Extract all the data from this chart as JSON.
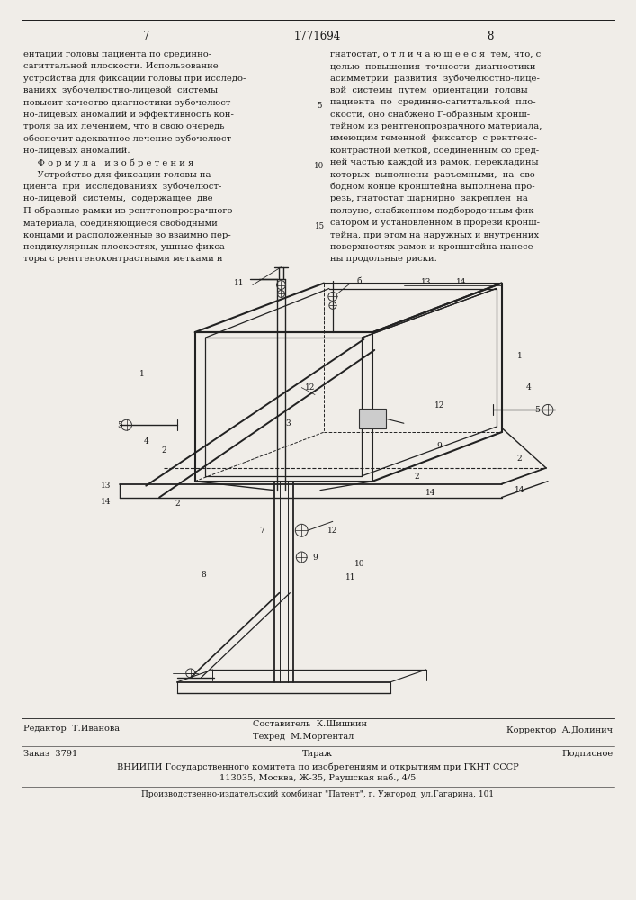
{
  "page_number_left": "7",
  "page_number_center": "1771694",
  "page_number_right": "8",
  "bg_color": "#f0ede8",
  "text_color": "#1a1a1a",
  "left_column_lines": [
    "ентации головы пациента по срединно-",
    "сагиттальной плоскости. Использование",
    "устройства для фиксации головы при исследо-",
    "ваниях  зубочелюстно-лицевой  системы",
    "повысит качество диагностики зубочелюст-",
    "но-лицевых аномалий и эффективность кон-",
    "троля за их лечением, что в свою очередь",
    "обеспечит адекватное лечение зубочелюст-",
    "но-лицевых аномалий.",
    "     Ф о р м у л а   и з о б р е т е н и я",
    "     Устройство для фиксации головы па-",
    "циента  при  исследованиях  зубочелюст-",
    "но-лицевой  системы,  содержащее  две",
    "П-образные рамки из рентгенопрозрачного",
    "материала, соединяющиеся свободными",
    "концами и расположенные во взаимно пер-",
    "пендикулярных плоскостях, ушные фикса-",
    "торы с рентгеноконтрастными метками и"
  ],
  "right_column_lines": [
    "гнатостат, о т л и ч а ю щ е е с я  тем, что, с",
    "целью  повышения  точности  диагностики",
    "асимметрии  развития  зубочелюстно-лице-",
    "вой  системы  путем  ориентации  головы",
    "пациента  по  срединно-сагиттальной  пло-",
    "скости, оно снабжено Г-образным кронш-",
    "тейном из рентгенопрозрачного материала,",
    "имеющим теменной  фиксатор  с рентгено-",
    "контрастной меткой, соединенным со сред-",
    "ней частью каждой из рамок, перекладины",
    "которых  выполнены  разъемными,  на  сво-",
    "бодном конце кронштейна выполнена про-",
    "резь, гнатостат шарнирно  закреплен  на",
    "ползуне, снабженном подбородочным фик-",
    "сатором и установленном в прорези кронш-",
    "тейна, при этом на наружных и внутренних",
    "поверхностях рамок и кронштейна нанесе-",
    "ны продольные риски."
  ],
  "line_num_5_row": 4,
  "line_num_10_row": 9,
  "line_num_15_row": 14,
  "footer_line1_left": "Редактор  Т.Иванова",
  "footer_line1_center": "Составитель  К.Шишкин",
  "footer_line1_center2": "Техред  М.Моргентал",
  "footer_line1_right": "Корректор  А.Долинич",
  "footer_line2_left": "Заказ  3791",
  "footer_line2_center": "Тираж",
  "footer_line2_right": "Подписное",
  "footer_line3": "ВНИИПИ Государственного комитета по изобретениям и открытиям при ГКНТ СССР",
  "footer_line4": "113035, Москва, Ж-35, Раушская наб., 4/5",
  "footer_line5": "Производственно-издательский комбинат \"Патент\", г. Ужгород, ул.Гагарина, 101",
  "font_size_body": 7.2,
  "font_size_header": 8.5,
  "font_size_footer": 7.0,
  "font_size_label": 6.5
}
